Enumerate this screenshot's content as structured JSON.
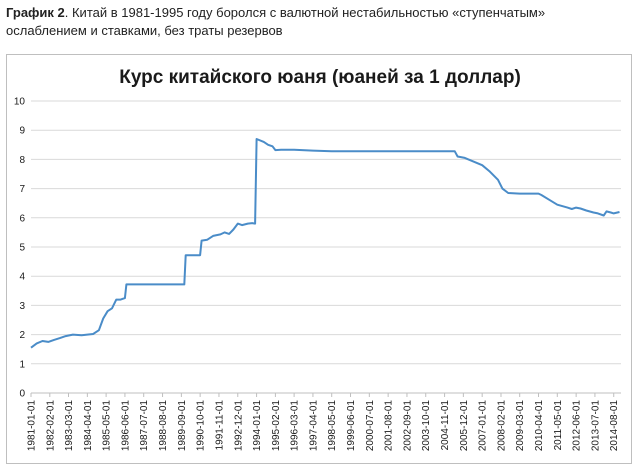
{
  "caption": {
    "label": "График 2",
    "text": ". Китай в 1981-1995 году боролся с валютной нестабильностью «ступенчатым» ослаблением и ставками, без траты резервов"
  },
  "chart_data": {
    "type": "line",
    "title": "Курс китайского юаня (юаней за 1 доллар)",
    "xlabel": "",
    "ylabel": "",
    "ylim": [
      0,
      10
    ],
    "y_ticks": [
      0,
      1,
      2,
      3,
      4,
      5,
      6,
      7,
      8,
      9,
      10
    ],
    "x_tick_labels": [
      "1981-01-01",
      "1982-02-01",
      "1983-03-01",
      "1984-04-01",
      "1985-05-01",
      "1986-06-01",
      "1987-07-01",
      "1988-08-01",
      "1989-09-01",
      "1990-10-01",
      "1991-11-01",
      "1992-12-01",
      "1994-01-01",
      "1995-02-01",
      "1996-03-01",
      "1997-04-01",
      "1998-05-01",
      "1999-06-01",
      "2000-07-01",
      "2001-08-01",
      "2002-09-01",
      "2003-10-01",
      "2004-11-01",
      "2005-12-01",
      "2007-01-01",
      "2008-02-01",
      "2009-03-01",
      "2010-04-01",
      "2011-05-01",
      "2012-06-01",
      "2013-07-01",
      "2014-08-01"
    ],
    "grid": true,
    "line_color": "#4a8cc8",
    "grid_color": "#d9d9d9",
    "series": [
      {
        "x": [
          "1981-01-01",
          "1981-05-01",
          "1981-09-01",
          "1982-01-01",
          "1982-05-01",
          "1982-09-01",
          "1983-01-01",
          "1983-06-01",
          "1983-12-01",
          "1984-04-01",
          "1984-08-01",
          "1984-12-01",
          "1985-03-01",
          "1985-06-01",
          "1985-09-01",
          "1985-12-01",
          "1986-03-01",
          "1986-06-01",
          "1986-07-01",
          "1986-12-01",
          "1987-03-01",
          "1988-06-01",
          "1989-06-01",
          "1989-11-01",
          "1989-12-01",
          "1990-06-01",
          "1990-10-01",
          "1990-11-01",
          "1991-03-01",
          "1991-07-01",
          "1991-12-01",
          "1992-03-01",
          "1992-06-01",
          "1992-09-01",
          "1992-12-01",
          "1993-03-01",
          "1993-07-01",
          "1993-10-01",
          "1993-12-01",
          "1994-01-01",
          "1994-06-01",
          "1994-09-01",
          "1994-12-01",
          "1995-02-01",
          "1995-06-01",
          "1996-03-01",
          "1997-04-01",
          "1998-05-01",
          "2000-01-01",
          "2003-01-01",
          "2005-06-01",
          "2005-08-01",
          "2006-01-01",
          "2006-06-01",
          "2007-01-01",
          "2007-06-01",
          "2007-12-01",
          "2008-03-01",
          "2008-07-01",
          "2009-03-01",
          "2010-04-01",
          "2010-06-01",
          "2010-12-01",
          "2011-05-01",
          "2011-12-01",
          "2012-03-01",
          "2012-06-01",
          "2012-09-01",
          "2013-01-01",
          "2013-06-01",
          "2013-09-01",
          "2014-01-01",
          "2014-03-01",
          "2014-06-01",
          "2014-08-01",
          "2014-12-01"
        ],
        "y": [
          1.55,
          1.7,
          1.78,
          1.75,
          1.82,
          1.88,
          1.95,
          2.0,
          1.98,
          2.0,
          2.02,
          2.15,
          2.55,
          2.8,
          2.9,
          3.2,
          3.2,
          3.25,
          3.72,
          3.72,
          3.72,
          3.72,
          3.72,
          3.72,
          4.72,
          4.72,
          4.72,
          5.22,
          5.25,
          5.38,
          5.43,
          5.5,
          5.45,
          5.6,
          5.8,
          5.75,
          5.8,
          5.82,
          5.8,
          8.7,
          8.6,
          8.5,
          8.45,
          8.32,
          8.33,
          8.33,
          8.3,
          8.28,
          8.28,
          8.28,
          8.28,
          8.1,
          8.05,
          7.95,
          7.8,
          7.6,
          7.3,
          7.0,
          6.85,
          6.83,
          6.83,
          6.78,
          6.6,
          6.45,
          6.35,
          6.3,
          6.35,
          6.32,
          6.25,
          6.18,
          6.15,
          6.08,
          6.22,
          6.18,
          6.15,
          6.2
        ]
      }
    ]
  }
}
